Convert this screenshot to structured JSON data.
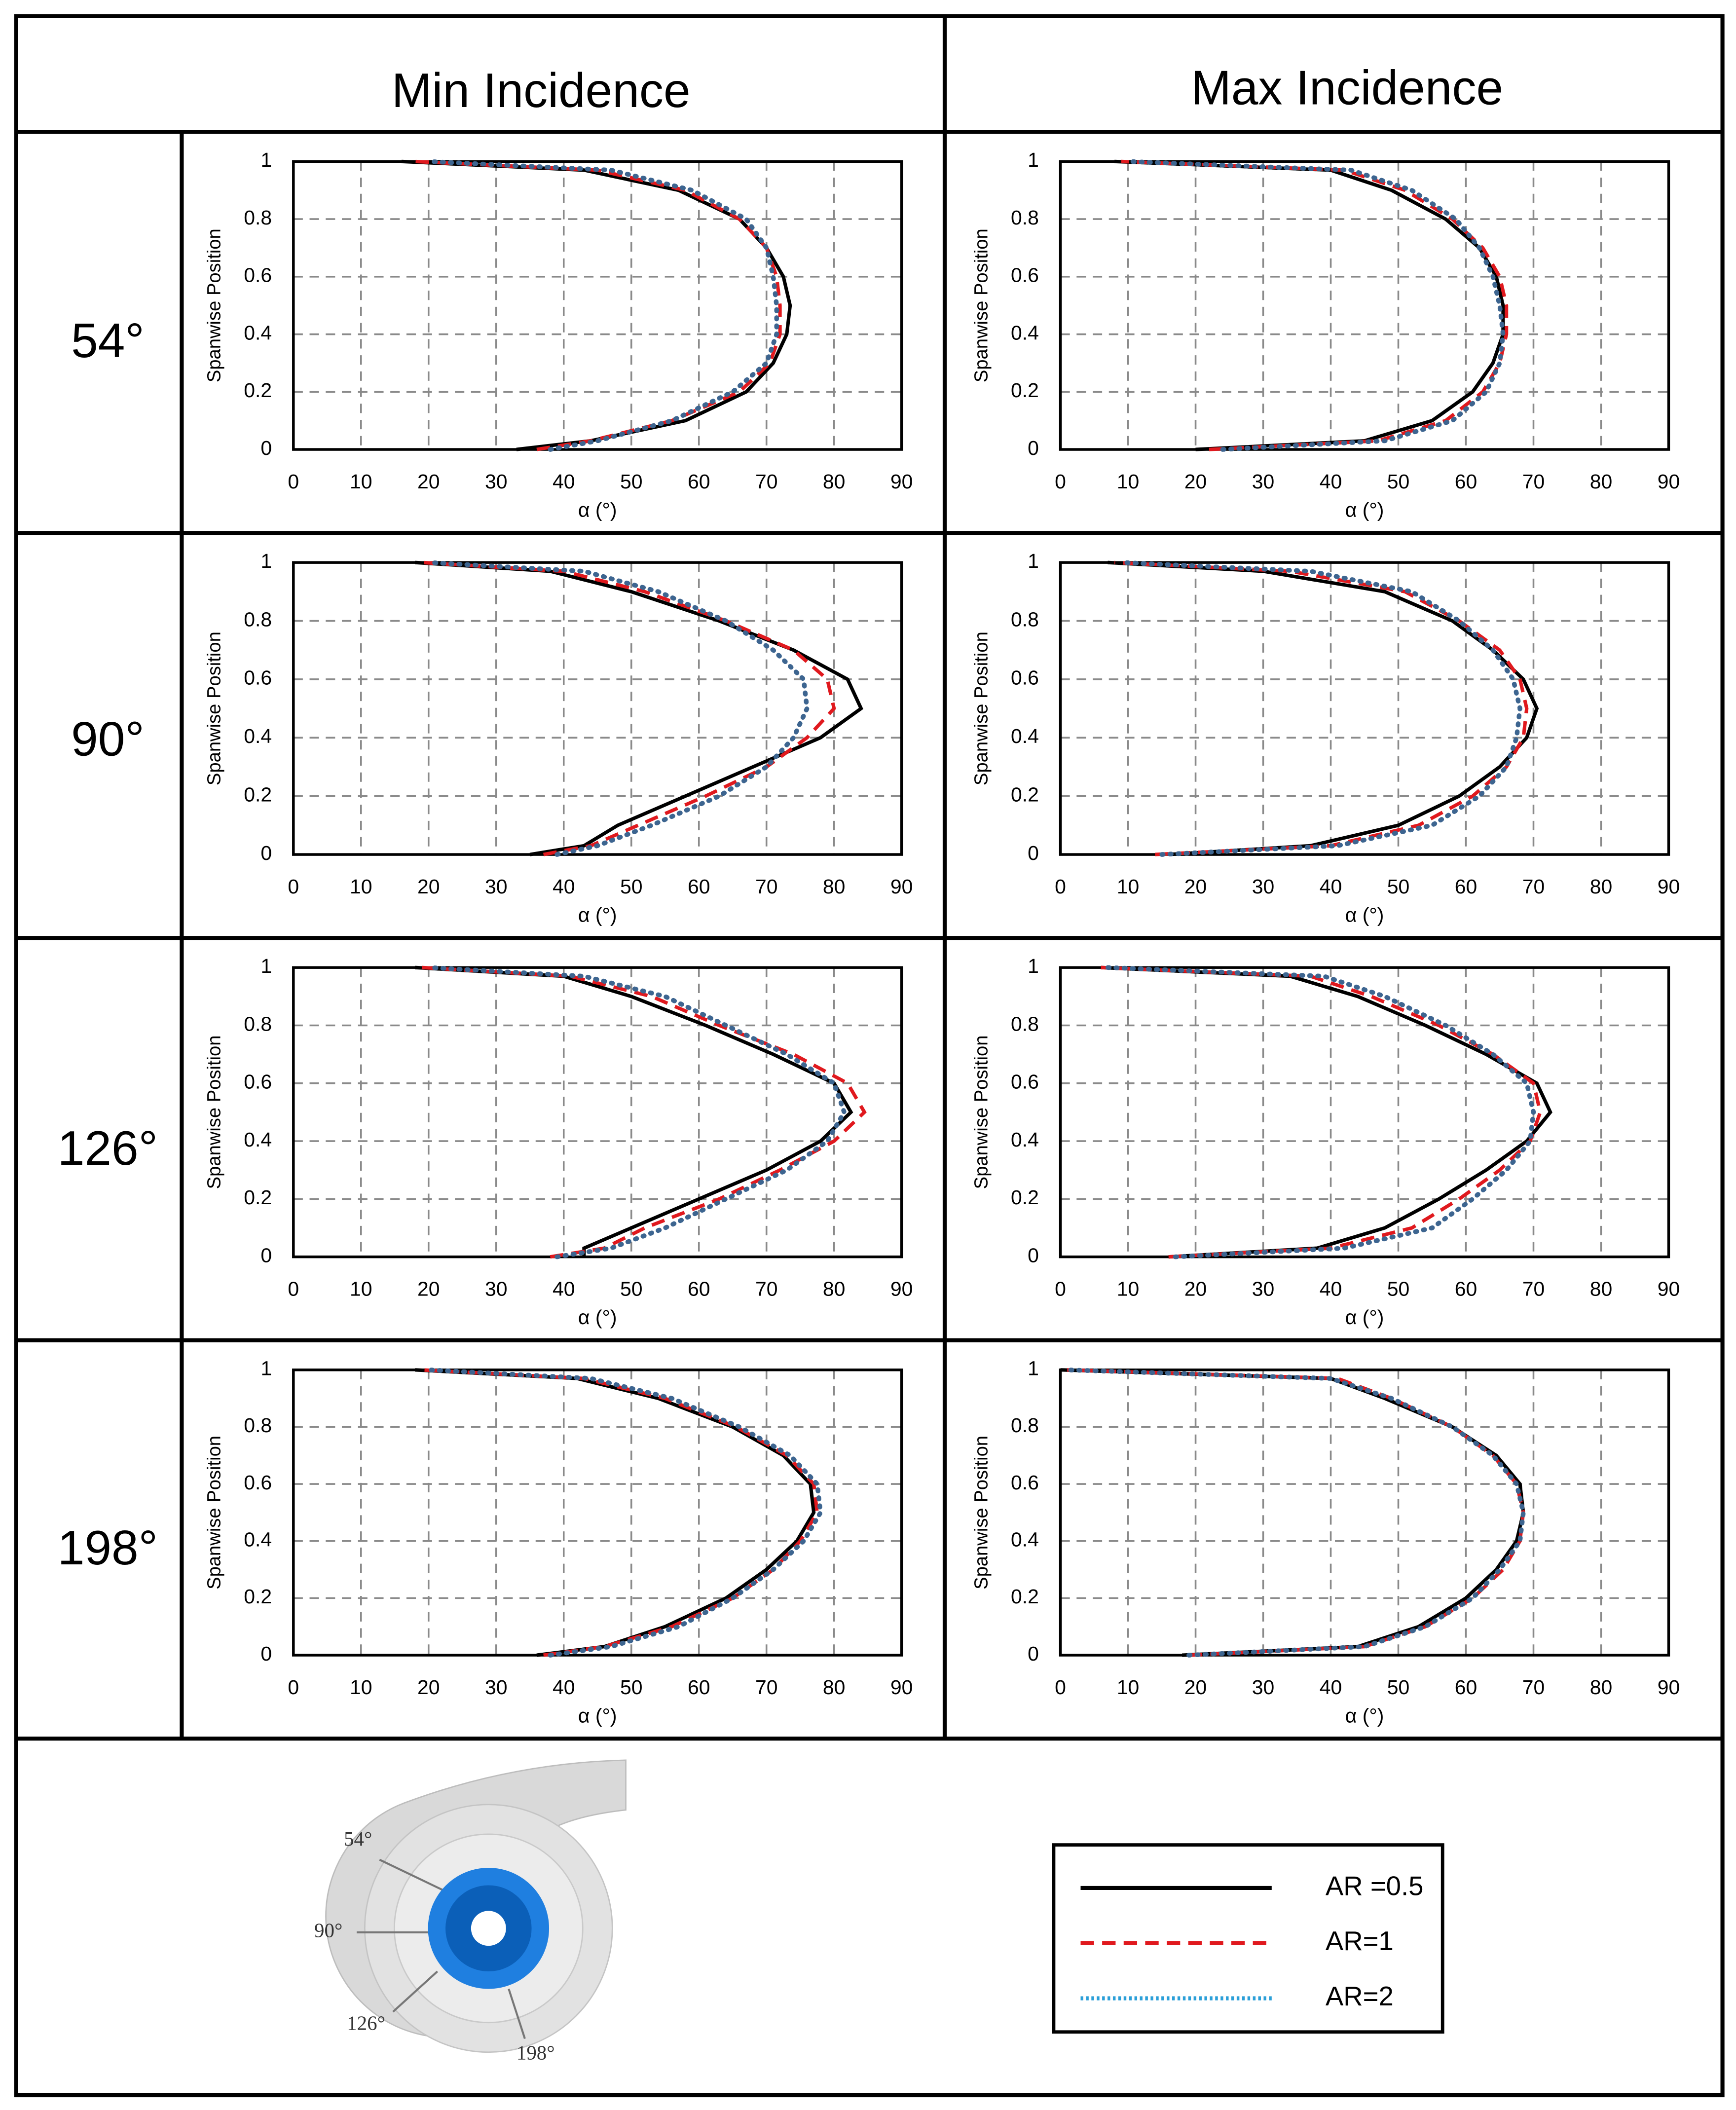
{
  "col_titles": [
    "Min Incidence",
    "Max Incidence"
  ],
  "row_labels": [
    "54°",
    "90°",
    "126°",
    "198°"
  ],
  "chart_data": [
    {
      "type": "line",
      "x_label": "α (°)",
      "y_label": "Spanwise Position",
      "xlim": [
        0,
        90
      ],
      "xticks": [
        0,
        10,
        20,
        30,
        40,
        50,
        60,
        70,
        80,
        90
      ],
      "ylim": [
        0,
        1
      ],
      "yticks": [
        0,
        0.2,
        0.4,
        0.6,
        0.8,
        1
      ],
      "grid": true,
      "y": [
        0,
        0.03,
        0.1,
        0.2,
        0.3,
        0.4,
        0.5,
        0.6,
        0.7,
        0.8,
        0.9,
        0.97,
        1
      ],
      "series": [
        {
          "name": "AR =0.5",
          "color": "#000000",
          "style": "solid",
          "values": [
            33,
            44,
            58,
            67,
            71,
            73,
            73.5,
            72.5,
            70,
            66,
            57,
            43,
            16
          ]
        },
        {
          "name": "AR=1",
          "color": "#e0191e",
          "style": "dashed",
          "values": [
            36,
            44,
            56,
            66,
            70.5,
            72,
            72,
            71.5,
            70,
            66,
            58,
            45,
            18
          ]
        },
        {
          "name": "AR=2",
          "color": "#3d6590",
          "style": "dotted",
          "values": [
            38,
            45,
            56,
            65,
            70,
            71.5,
            71.5,
            71,
            70,
            67,
            59,
            47,
            20
          ]
        }
      ]
    },
    {
      "type": "line",
      "x_label": "α (°)",
      "y_label": "Spanwise Position",
      "xlim": [
        0,
        90
      ],
      "xticks": [
        0,
        10,
        20,
        30,
        40,
        50,
        60,
        70,
        80,
        90
      ],
      "ylim": [
        0,
        1
      ],
      "yticks": [
        0,
        0.2,
        0.4,
        0.6,
        0.8,
        1
      ],
      "grid": true,
      "y": [
        0,
        0.03,
        0.1,
        0.2,
        0.3,
        0.4,
        0.5,
        0.6,
        0.7,
        0.8,
        0.9,
        0.97,
        1
      ],
      "series": [
        {
          "name": "AR =0.5",
          "color": "#000000",
          "style": "solid",
          "values": [
            20,
            45,
            55,
            61,
            64,
            65.5,
            65.5,
            64.5,
            62,
            57,
            49,
            40,
            8
          ]
        },
        {
          "name": "AR=1",
          "color": "#e0191e",
          "style": "dashed",
          "values": [
            22,
            47,
            57,
            62.5,
            65,
            66,
            66,
            65,
            62.5,
            58,
            51,
            42,
            9
          ]
        },
        {
          "name": "AR=2",
          "color": "#3d6590",
          "style": "dotted",
          "values": [
            24,
            48,
            58,
            63,
            65,
            65.5,
            65,
            64,
            62,
            58.5,
            52,
            43,
            10
          ]
        }
      ]
    },
    {
      "type": "line",
      "x_label": "α (°)",
      "y_label": "Spanwise Position",
      "xlim": [
        0,
        90
      ],
      "xticks": [
        0,
        10,
        20,
        30,
        40,
        50,
        60,
        70,
        80,
        90
      ],
      "ylim": [
        0,
        1
      ],
      "yticks": [
        0,
        0.2,
        0.4,
        0.6,
        0.8,
        1
      ],
      "grid": true,
      "y": [
        0,
        0.03,
        0.1,
        0.2,
        0.3,
        0.4,
        0.5,
        0.6,
        0.7,
        0.8,
        0.9,
        0.97,
        1
      ],
      "series": [
        {
          "name": "AR =0.5",
          "color": "#000000",
          "style": "solid",
          "values": [
            35,
            43,
            48,
            58,
            68,
            78,
            84,
            82,
            74,
            63,
            50,
            38,
            18
          ]
        },
        {
          "name": "AR=1",
          "color": "#e0191e",
          "style": "dashed",
          "values": [
            37,
            44,
            51,
            61,
            70,
            76,
            80,
            79,
            74,
            64,
            52,
            40,
            19
          ]
        },
        {
          "name": "AR=2",
          "color": "#3d6590",
          "style": "dotted",
          "values": [
            39,
            45,
            53,
            63,
            70,
            74,
            76,
            75.5,
            71,
            64,
            54,
            43,
            20
          ]
        }
      ]
    },
    {
      "type": "line",
      "x_label": "α (°)",
      "y_label": "Spanwise Position",
      "xlim": [
        0,
        90
      ],
      "xticks": [
        0,
        10,
        20,
        30,
        40,
        50,
        60,
        70,
        80,
        90
      ],
      "ylim": [
        0,
        1
      ],
      "yticks": [
        0,
        0.2,
        0.4,
        0.6,
        0.8,
        1
      ],
      "grid": true,
      "y": [
        0,
        0.03,
        0.1,
        0.2,
        0.3,
        0.4,
        0.5,
        0.6,
        0.7,
        0.8,
        0.9,
        0.97,
        1
      ],
      "series": [
        {
          "name": "AR =0.5",
          "color": "#000000",
          "style": "solid",
          "values": [
            16,
            37,
            50,
            59,
            65,
            69,
            70.5,
            68.5,
            64,
            58,
            48,
            30,
            7
          ]
        },
        {
          "name": "AR=1",
          "color": "#e0191e",
          "style": "dashed",
          "values": [
            14,
            40,
            53,
            61,
            66,
            68.5,
            69,
            68,
            65,
            59,
            51,
            34,
            8
          ]
        },
        {
          "name": "AR=2",
          "color": "#3d6590",
          "style": "dotted",
          "values": [
            15,
            41,
            55,
            62,
            66,
            67.5,
            68,
            67,
            64,
            59,
            52,
            37,
            9
          ]
        }
      ]
    },
    {
      "type": "line",
      "x_label": "α (°)",
      "y_label": "Spanwise Position",
      "xlim": [
        0,
        90
      ],
      "xticks": [
        0,
        10,
        20,
        30,
        40,
        50,
        60,
        70,
        80,
        90
      ],
      "ylim": [
        0,
        1
      ],
      "yticks": [
        0,
        0.2,
        0.4,
        0.6,
        0.8,
        1
      ],
      "grid": true,
      "y": [
        0,
        0.03,
        0.1,
        0.2,
        0.3,
        0.4,
        0.5,
        0.6,
        0.7,
        0.8,
        0.9,
        0.97,
        1
      ],
      "series": [
        {
          "name": "AR =0.5",
          "color": "#000000",
          "style": "solid",
          "values": [
            43,
            43,
            50,
            60,
            70,
            78,
            82.5,
            80,
            71,
            61,
            50,
            40,
            18
          ]
        },
        {
          "name": "AR=1",
          "color": "#e0191e",
          "style": "dashed",
          "values": [
            38,
            46,
            52,
            63,
            72,
            80,
            84.5,
            82,
            74,
            63,
            53,
            41,
            19
          ]
        },
        {
          "name": "AR=2",
          "color": "#3d6590",
          "style": "dotted",
          "values": [
            39,
            47,
            55,
            64,
            73,
            79,
            81.5,
            80,
            73,
            64,
            55,
            43,
            20
          ]
        }
      ]
    },
    {
      "type": "line",
      "x_label": "α (°)",
      "y_label": "Spanwise Position",
      "xlim": [
        0,
        90
      ],
      "xticks": [
        0,
        10,
        20,
        30,
        40,
        50,
        60,
        70,
        80,
        90
      ],
      "ylim": [
        0,
        1
      ],
      "yticks": [
        0,
        0.2,
        0.4,
        0.6,
        0.8,
        1
      ],
      "grid": true,
      "y": [
        0,
        0.03,
        0.1,
        0.2,
        0.3,
        0.4,
        0.5,
        0.6,
        0.7,
        0.8,
        0.9,
        0.97,
        1
      ],
      "series": [
        {
          "name": "AR =0.5",
          "color": "#000000",
          "style": "solid",
          "values": [
            16,
            38,
            48,
            56,
            63,
            69,
            72.5,
            70.5,
            63,
            54,
            44,
            34,
            6
          ]
        },
        {
          "name": "AR=1",
          "color": "#e0191e",
          "style": "dashed",
          "values": [
            16,
            40,
            52,
            59,
            65,
            69.5,
            71,
            70,
            64,
            56,
            46,
            37,
            6
          ]
        },
        {
          "name": "AR=2",
          "color": "#3d6590",
          "style": "dotted",
          "values": [
            17,
            42,
            55,
            61,
            66,
            69.5,
            70,
            69,
            64,
            57,
            48,
            39,
            7
          ]
        }
      ]
    },
    {
      "type": "line",
      "x_label": "α (°)",
      "y_label": "Spanwise Position",
      "xlim": [
        0,
        90
      ],
      "xticks": [
        0,
        10,
        20,
        30,
        40,
        50,
        60,
        70,
        80,
        90
      ],
      "ylim": [
        0,
        1
      ],
      "yticks": [
        0,
        0.2,
        0.4,
        0.6,
        0.8,
        1
      ],
      "grid": true,
      "y": [
        0,
        0.03,
        0.1,
        0.2,
        0.3,
        0.4,
        0.5,
        0.6,
        0.7,
        0.8,
        0.9,
        0.97,
        1
      ],
      "series": [
        {
          "name": "AR =0.5",
          "color": "#000000",
          "style": "solid",
          "values": [
            36,
            46,
            55,
            64,
            70,
            74.5,
            77,
            76.5,
            72.5,
            65,
            54,
            42,
            18
          ]
        },
        {
          "name": "AR=1",
          "color": "#e0191e",
          "style": "dashed",
          "values": [
            37,
            46,
            56,
            65,
            71,
            75,
            77.5,
            77,
            73,
            65.5,
            55,
            43,
            19
          ]
        },
        {
          "name": "AR=2",
          "color": "#3d6590",
          "style": "dotted",
          "values": [
            38,
            47,
            57,
            65,
            71,
            75.5,
            78,
            77.5,
            73.5,
            66,
            56,
            44,
            20
          ]
        }
      ]
    },
    {
      "type": "line",
      "x_label": "α (°)",
      "y_label": "Spanwise Position",
      "xlim": [
        0,
        90
      ],
      "xticks": [
        0,
        10,
        20,
        30,
        40,
        50,
        60,
        70,
        80,
        90
      ],
      "ylim": [
        0,
        1
      ],
      "yticks": [
        0,
        0.2,
        0.4,
        0.6,
        0.8,
        1
      ],
      "grid": true,
      "y": [
        0,
        0.03,
        0.1,
        0.2,
        0.3,
        0.4,
        0.5,
        0.6,
        0.7,
        0.8,
        0.9,
        0.97,
        1
      ],
      "series": [
        {
          "name": "AR =0.5",
          "color": "#000000",
          "style": "solid",
          "values": [
            18,
            44,
            53,
            60,
            64.5,
            67.5,
            68.5,
            68,
            64.5,
            58,
            48,
            40,
            0
          ]
        },
        {
          "name": "AR=1",
          "color": "#e0191e",
          "style": "dashed",
          "values": [
            19,
            45,
            54,
            61,
            65.5,
            68,
            68.5,
            67.5,
            64,
            58,
            49,
            41,
            1
          ]
        },
        {
          "name": "AR=2",
          "color": "#3d6590",
          "style": "dotted",
          "values": [
            19,
            45,
            54,
            61,
            65,
            68,
            68.5,
            67.5,
            64,
            58,
            49,
            40,
            1
          ]
        }
      ]
    }
  ]
}
